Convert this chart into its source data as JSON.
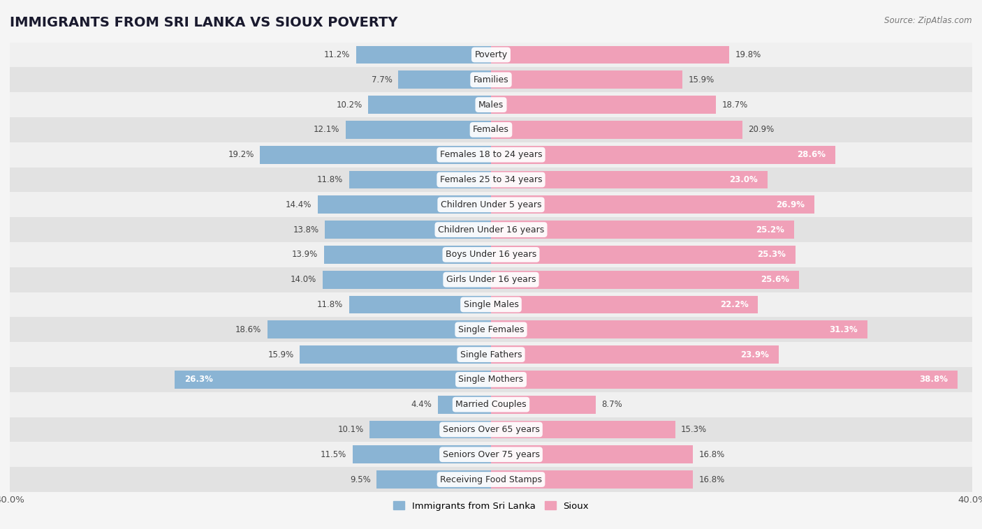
{
  "title": "IMMIGRANTS FROM SRI LANKA VS SIOUX POVERTY",
  "source": "Source: ZipAtlas.com",
  "categories": [
    "Poverty",
    "Families",
    "Males",
    "Females",
    "Females 18 to 24 years",
    "Females 25 to 34 years",
    "Children Under 5 years",
    "Children Under 16 years",
    "Boys Under 16 years",
    "Girls Under 16 years",
    "Single Males",
    "Single Females",
    "Single Fathers",
    "Single Mothers",
    "Married Couples",
    "Seniors Over 65 years",
    "Seniors Over 75 years",
    "Receiving Food Stamps"
  ],
  "sri_lanka_values": [
    11.2,
    7.7,
    10.2,
    12.1,
    19.2,
    11.8,
    14.4,
    13.8,
    13.9,
    14.0,
    11.8,
    18.6,
    15.9,
    26.3,
    4.4,
    10.1,
    11.5,
    9.5
  ],
  "sioux_values": [
    19.8,
    15.9,
    18.7,
    20.9,
    28.6,
    23.0,
    26.9,
    25.2,
    25.3,
    25.6,
    22.2,
    31.3,
    23.9,
    38.8,
    8.7,
    15.3,
    16.8,
    16.8
  ],
  "sri_lanka_color": "#8ab4d4",
  "sioux_color": "#f0a0b8",
  "sri_lanka_label": "Immigrants from Sri Lanka",
  "sioux_label": "Sioux",
  "xlim": 40.0,
  "bg_light": "#f0f0f0",
  "bg_dark": "#e2e2e2",
  "bar_height": 0.72,
  "title_fontsize": 14,
  "label_fontsize": 9,
  "value_fontsize": 8.5
}
